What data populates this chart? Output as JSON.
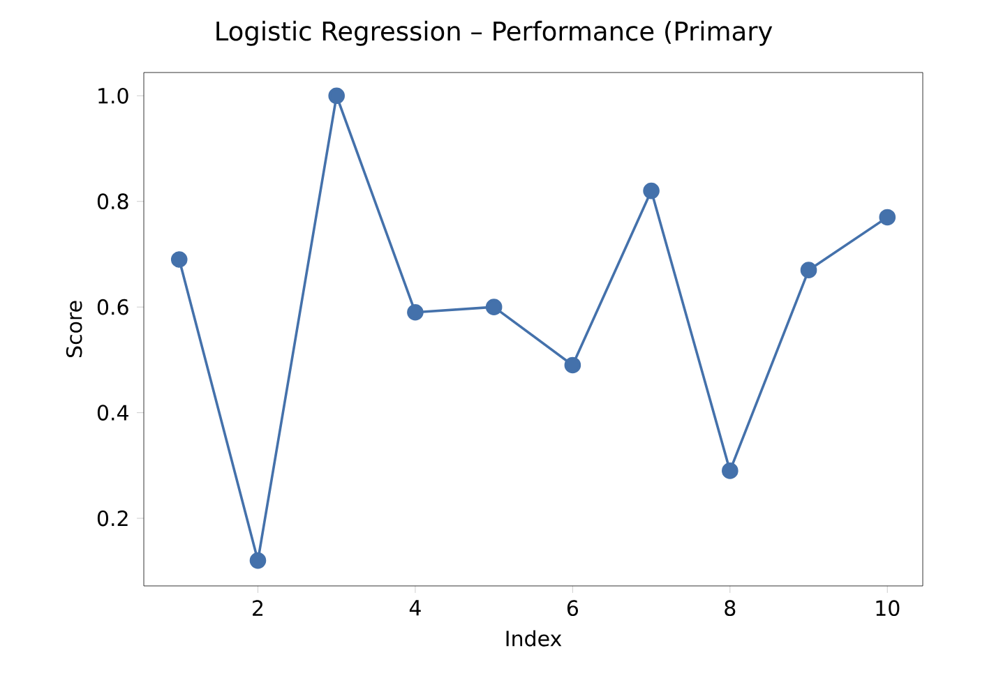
{
  "chart_data": {
    "type": "line",
    "title": "Logistic Regression – Performance (Primary",
    "xlabel": "Index",
    "ylabel": "Score",
    "x": [
      1,
      2,
      3,
      4,
      5,
      6,
      7,
      8,
      9,
      10
    ],
    "series": [
      {
        "color": "#4471ab",
        "values": [
          0.69,
          0.12,
          1.0,
          0.59,
          0.6,
          0.49,
          0.82,
          0.29,
          0.67,
          0.77
        ]
      }
    ],
    "marker": "circle",
    "line_style": "solid",
    "xlim": [
      0.55,
      10.45
    ],
    "ylim": [
      0.072,
      1.044
    ],
    "xticks": [
      2,
      4,
      6,
      8,
      10
    ],
    "yticks": [
      0.2,
      0.4,
      0.6,
      0.8,
      {
        "value": 1.0,
        "label": "1.0"
      }
    ]
  }
}
